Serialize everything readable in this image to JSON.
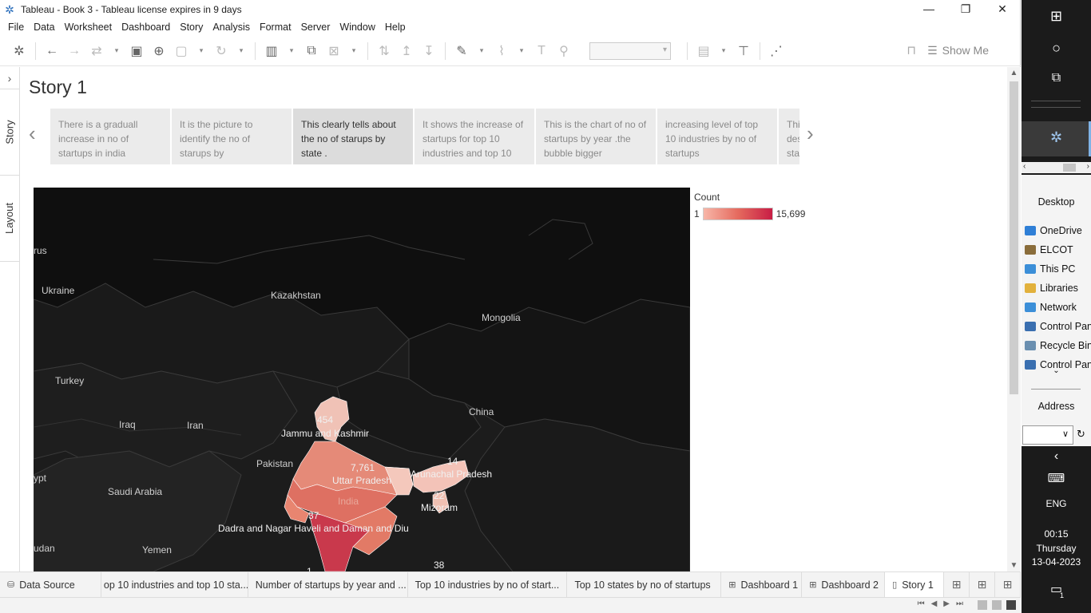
{
  "window": {
    "title": "Tableau - Book 3 - Tableau license expires in 9 days",
    "minimize": "—",
    "restore": "❐",
    "close": "✕"
  },
  "menu": [
    "File",
    "Data",
    "Worksheet",
    "Dashboard",
    "Story",
    "Analysis",
    "Format",
    "Server",
    "Window",
    "Help"
  ],
  "toolbar": {
    "show_me": "Show Me"
  },
  "side_tabs": {
    "story": "Story",
    "layout": "Layout"
  },
  "story": {
    "title": "Story 1",
    "points": [
      "There is a graduall increase in no of startups in india",
      "It is the picture to identify the no of starups by",
      "This clearly tells about the no of starups by state .",
      "It shows the increase of startups for top 10 industries and top 10",
      "This is the chart of no of startups by year .the bubble bigger",
      "increasing level of top 10 industries by no of startups",
      "This des sta"
    ],
    "active_point": 2
  },
  "map": {
    "countries": [
      "rus",
      "Ukraine",
      "Kazakhstan",
      "Mongolia",
      "Turkey",
      "Iraq",
      "Iran",
      "China",
      "Pakistan",
      "Saudi Arabia",
      "ypt",
      "Yemen",
      "udan"
    ],
    "india_label": "India",
    "states": [
      {
        "name": "Jammu and Kashmir",
        "value": "454"
      },
      {
        "name": "Uttar Pradesh",
        "value": "7,761"
      },
      {
        "name": "Arunachal Pradesh",
        "value": "14"
      },
      {
        "name": "Mizoram",
        "value": "22"
      },
      {
        "name": "Dadra and Nagar Haveli and Daman and Diu",
        "value": "37"
      },
      {
        "name": "",
        "value": "1"
      },
      {
        "name": "",
        "value": "38"
      }
    ]
  },
  "legend": {
    "title": "Count",
    "min": "1",
    "max": "15,699",
    "colors": [
      "#f7b6a8",
      "#e56a5e",
      "#c81d45"
    ]
  },
  "sheet_tabs": [
    {
      "label": "Data Source",
      "icon": "database-icon",
      "active": false
    },
    {
      "label": "op 10 industries and top 10 sta...",
      "icon": "",
      "active": false
    },
    {
      "label": "Number of startups by year and ...",
      "icon": "",
      "active": false
    },
    {
      "label": "Top 10 industries  by no of start...",
      "icon": "",
      "active": false
    },
    {
      "label": "Top 10 states by no of startups",
      "icon": "",
      "active": false
    },
    {
      "label": "Dashboard 1",
      "icon": "dashboard-icon",
      "active": false
    },
    {
      "label": "Dashboard 2",
      "icon": "dashboard-icon",
      "active": false
    },
    {
      "label": "Story 1",
      "icon": "story-icon",
      "active": true
    }
  ],
  "taskbar": {
    "desktop_header": "Desktop",
    "desktop_items": [
      {
        "label": "OneDrive",
        "color": "#2f7fd6"
      },
      {
        "label": "ELCOT",
        "color": "#8a6d3b"
      },
      {
        "label": "This PC",
        "color": "#3c8fd8"
      },
      {
        "label": "Libraries",
        "color": "#e2b13c"
      },
      {
        "label": "Network",
        "color": "#3c8fd8"
      },
      {
        "label": "Control Panel",
        "color": "#3a6fb0"
      },
      {
        "label": "Recycle Bin",
        "color": "#6a8fb0"
      },
      {
        "label": "Control Panel",
        "color": "#3a6fb0"
      }
    ],
    "address_header": "Address",
    "language": "ENG",
    "time": "00:15",
    "day": "Thursday",
    "date": "13-04-2023",
    "notification_count": "1"
  }
}
